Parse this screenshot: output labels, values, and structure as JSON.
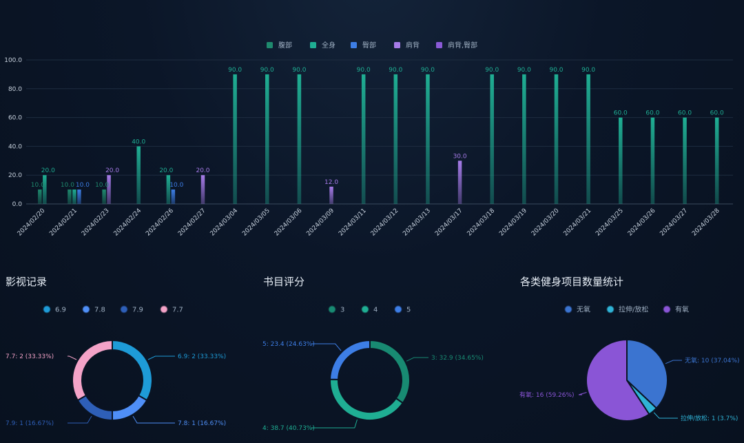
{
  "colors": {
    "fubu": "#1f8a6e",
    "quanshen": "#1fae93",
    "tunbu": "#3d7ee6",
    "jianbei": "#a67be8",
    "jianbei_tunbu": "#8a5ad6"
  },
  "chart_data": [
    {
      "type": "bar",
      "title": "",
      "ylim": [
        0,
        100
      ],
      "yticks": [
        "0.0",
        "20.0",
        "40.0",
        "60.0",
        "80.0",
        "100.0"
      ],
      "categories": [
        "2024/02/20",
        "2024/02/21",
        "2024/02/23",
        "2024/02/24",
        "2024/02/26",
        "2024/02/27",
        "2024/03/04",
        "2024/03/05",
        "2024/03/06",
        "2024/03/09",
        "2024/03/11",
        "2024/03/12",
        "2024/03/13",
        "2024/03/17",
        "2024/03/18",
        "2024/03/19",
        "2024/03/20",
        "2024/03/21",
        "2024/03/25",
        "2024/03/26",
        "2024/03/27",
        "2024/03/28"
      ],
      "series": [
        {
          "name": "腹部",
          "color": "#1f8a6e",
          "values": [
            10,
            10,
            10,
            null,
            null,
            null,
            null,
            null,
            null,
            null,
            null,
            null,
            null,
            null,
            null,
            null,
            null,
            null,
            null,
            null,
            null,
            null
          ]
        },
        {
          "name": "全身",
          "color": "#1fae93",
          "values": [
            20,
            10,
            null,
            40,
            20,
            null,
            90,
            90,
            90,
            null,
            90,
            90,
            90,
            null,
            90,
            90,
            90,
            90,
            60,
            60,
            60,
            60
          ]
        },
        {
          "name": "臀部",
          "color": "#3d7ee6",
          "values": [
            null,
            10,
            null,
            null,
            10,
            null,
            null,
            null,
            null,
            null,
            null,
            null,
            null,
            null,
            null,
            null,
            null,
            null,
            null,
            null,
            null,
            null
          ]
        },
        {
          "name": "肩背",
          "color": "#a67be8",
          "values": [
            null,
            null,
            20,
            null,
            null,
            20,
            null,
            null,
            null,
            12,
            null,
            null,
            null,
            30,
            null,
            null,
            null,
            null,
            null,
            null,
            null,
            null
          ]
        },
        {
          "name": "肩背,臀部",
          "color": "#8a5ad6",
          "values": [
            null,
            null,
            null,
            null,
            null,
            null,
            null,
            null,
            null,
            null,
            null,
            null,
            null,
            null,
            null,
            null,
            null,
            null,
            null,
            null,
            null,
            null
          ]
        }
      ],
      "value_labels": [
        {
          "category": "2024/02/20",
          "series": "腹部",
          "text": "10.0"
        },
        {
          "category": "2024/02/20",
          "series": "全身",
          "text": "20.0"
        },
        {
          "category": "2024/02/21",
          "series": "腹部",
          "text": "10.0"
        },
        {
          "category": "2024/02/21",
          "series": "臀部",
          "text": "10.0"
        },
        {
          "category": "2024/02/23",
          "series": "腹部",
          "text": "10.0"
        },
        {
          "category": "2024/02/23",
          "series": "肩背",
          "text": "20.0"
        },
        {
          "category": "2024/02/24",
          "series": "全身",
          "text": "40.0"
        },
        {
          "category": "2024/02/26",
          "series": "全身",
          "text": "20.0"
        },
        {
          "category": "2024/02/26",
          "series": "臀部",
          "text": "10.0"
        },
        {
          "category": "2024/02/27",
          "series": "肩背",
          "text": "20.0"
        },
        {
          "category": "2024/03/04",
          "series": "全身",
          "text": "90.0"
        },
        {
          "category": "2024/03/05",
          "series": "全身",
          "text": "90.0"
        },
        {
          "category": "2024/03/06",
          "series": "全身",
          "text": "90.0"
        },
        {
          "category": "2024/03/09",
          "series": "肩背",
          "text": "12.0"
        },
        {
          "category": "2024/03/11",
          "series": "全身",
          "text": "90.0"
        },
        {
          "category": "2024/03/12",
          "series": "全身",
          "text": "90.0"
        },
        {
          "category": "2024/03/13",
          "series": "全身",
          "text": "90.0"
        },
        {
          "category": "2024/03/17",
          "series": "肩背",
          "text": "30.0"
        },
        {
          "category": "2024/03/18",
          "series": "全身",
          "text": "90.0"
        },
        {
          "category": "2024/03/19",
          "series": "全身",
          "text": "90.0"
        },
        {
          "category": "2024/03/20",
          "series": "全身",
          "text": "90.0"
        },
        {
          "category": "2024/03/21",
          "series": "全身",
          "text": "90.0"
        },
        {
          "category": "2024/03/25",
          "series": "全身",
          "text": "60.0"
        },
        {
          "category": "2024/03/26",
          "series": "全身",
          "text": "60.0"
        },
        {
          "category": "2024/03/27",
          "series": "全身",
          "text": "60.0"
        },
        {
          "category": "2024/03/28",
          "series": "全身",
          "text": "60.0"
        }
      ],
      "legend_position": "top-center",
      "grid": true
    },
    {
      "type": "pie",
      "donut": true,
      "title": "影视记录",
      "legend_position": "top-center",
      "slices": [
        {
          "name": "6.9",
          "value": 2,
          "percent": "33.33%",
          "label": "6.9: 2 (33.33%)",
          "color": "#1e9bd7"
        },
        {
          "name": "7.8",
          "value": 1,
          "percent": "16.67%",
          "label": "7.8: 1 (16.67%)",
          "color": "#4f8ff7"
        },
        {
          "name": "7.9",
          "value": 1,
          "percent": "16.67%",
          "label": "7.9: 1 (16.67%)",
          "color": "#2e5fb8"
        },
        {
          "name": "7.7",
          "value": 2,
          "percent": "33.33%",
          "label": "7.7: 2 (33.33%)",
          "color": "#f4a3c8"
        }
      ]
    },
    {
      "type": "pie",
      "donut": true,
      "title": "书目评分",
      "legend_position": "top-center",
      "slices": [
        {
          "name": "3",
          "value": 32.9,
          "percent": "34.65%",
          "label": "3: 32.9 (34.65%)",
          "color": "#188a72"
        },
        {
          "name": "4",
          "value": 38.7,
          "percent": "40.73%",
          "label": "4: 38.7 (40.73%)",
          "color": "#1fae93"
        },
        {
          "name": "5",
          "value": 23.4,
          "percent": "24.63%",
          "label": "5: 23.4 (24.63%)",
          "color": "#3d7ee6"
        }
      ]
    },
    {
      "type": "pie",
      "donut": false,
      "title": "各类健身项目数量统计",
      "legend_position": "top-center",
      "slices": [
        {
          "name": "无氧",
          "value": 10,
          "percent": "37.04%",
          "label": "无氧: 10 (37.04%)",
          "color": "#3b74d0"
        },
        {
          "name": "拉伸/放松",
          "value": 1,
          "percent": "3.7%",
          "label": "拉伸/放松: 1 (3.7%)",
          "color": "#2fb3d6"
        },
        {
          "name": "有氧",
          "value": 16,
          "percent": "59.26%",
          "label": "有氧: 16 (59.26%)",
          "color": "#8a55d6"
        }
      ]
    }
  ]
}
